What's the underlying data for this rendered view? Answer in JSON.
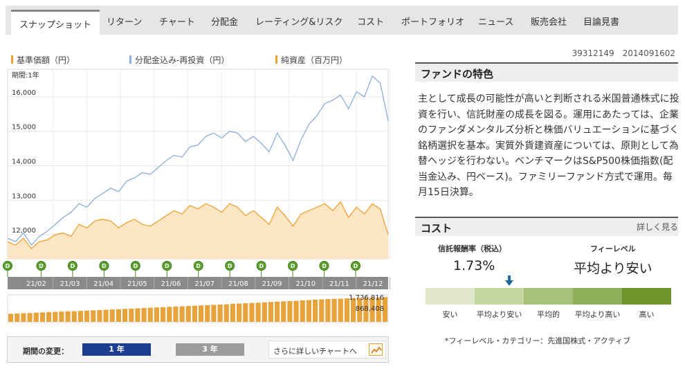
{
  "tabs": [
    {
      "label": "スナップショット",
      "active": true
    },
    {
      "label": "リターン"
    },
    {
      "label": "チャート"
    },
    {
      "label": "分配金"
    },
    {
      "label": "レーティング&リスク"
    },
    {
      "label": "コスト"
    },
    {
      "label": "ポートフォリオ"
    },
    {
      "label": "ニュース"
    },
    {
      "label": "販売会社"
    },
    {
      "label": "目論見書"
    }
  ],
  "legend": {
    "nav": {
      "label": "基準価額（円）",
      "color": "#f0a030"
    },
    "dist": {
      "label": "分配金込み-再投資（円）",
      "color": "#8aaed6"
    },
    "net": {
      "label": "純資産（百万円）",
      "color": "#f0a030"
    }
  },
  "chart": {
    "period_label": "期間:1年",
    "dividend_marker": "D"
  },
  "chart_data": {
    "type": "line",
    "ylim": [
      11300,
      16800
    ],
    "yticks": [
      "16,000",
      "15,000",
      "14,000",
      "13,000",
      "12,000"
    ],
    "ytick_values": [
      16000,
      15000,
      14000,
      13000,
      12000
    ],
    "month_labels": [
      "21/02",
      "21/03",
      "21/04",
      "21/05",
      "21/06",
      "21/07",
      "21/08",
      "21/09",
      "21/10",
      "21/11",
      "21/12"
    ],
    "dividends": 12,
    "series": [
      {
        "name": "分配金込み-再投資（円）",
        "color": "#8aaed6",
        "values": [
          11900,
          11800,
          12050,
          11700,
          11950,
          12100,
          12300,
          12500,
          12650,
          12900,
          12800,
          13050,
          13200,
          13350,
          13250,
          13550,
          13650,
          13800,
          13750,
          13950,
          14150,
          14300,
          14250,
          14550,
          14600,
          14850,
          14950,
          14800,
          15000,
          14950,
          14700,
          14850,
          14650,
          14400,
          14950,
          14600,
          14150,
          14750,
          15200,
          15450,
          15800,
          15900,
          16050,
          15650,
          16150,
          16000,
          16600,
          16400,
          15300
        ]
      },
      {
        "name": "基準価額（円）",
        "color": "#f0a030",
        "values": [
          11800,
          11700,
          11900,
          11600,
          11800,
          11850,
          12000,
          12050,
          11950,
          12300,
          12200,
          12400,
          12450,
          12400,
          12200,
          12350,
          12450,
          12300,
          12250,
          12400,
          12550,
          12700,
          12600,
          12850,
          12750,
          12900,
          12800,
          12650,
          12900,
          12800,
          12550,
          12700,
          12500,
          12300,
          12800,
          12550,
          12250,
          12600,
          12700,
          12800,
          12900,
          12700,
          12950,
          12500,
          12800,
          12600,
          12900,
          12750,
          12000
        ]
      }
    ],
    "net_assets": {
      "name": "純資産（百万円）",
      "max_label": "1,736,816",
      "min_label": "868,408",
      "max": 1736816,
      "min": 868408,
      "values": [
        560000,
        580000,
        600000,
        610000,
        640000,
        650000,
        670000,
        690000,
        710000,
        730000,
        740000,
        760000,
        780000,
        800000,
        820000,
        840000,
        860000,
        880000,
        900000,
        920000,
        940000,
        960000,
        980000,
        1000000,
        1020000,
        1040000,
        1060000,
        1080000,
        1100000,
        1120000,
        1140000,
        1160000,
        1180000,
        1200000,
        1220000,
        1250000,
        1270000,
        1290000,
        1310000,
        1330000,
        1360000,
        1380000,
        1400000,
        1420000,
        1440000,
        1460000,
        1490000,
        1510000,
        1540000,
        1560000,
        1580000,
        1600000,
        1610000,
        1630000,
        1650000,
        1660000,
        1680000,
        1690000,
        1700000,
        1710000
      ]
    }
  },
  "period": {
    "label": "期間の変更：",
    "one_year": "1 年",
    "three_year": "3 年",
    "more_chart": "さらに詳しいチャートへ"
  },
  "fund_codes": "39312149　2014091602",
  "features": {
    "title": "ファンドの特色",
    "body": "主として成長の可能性が高いと判断される米国普通株式に投資を行い、信託財産の成長を図る。運用にあたっては、企業のファンダメンタルズ分析と株価バリュエーションに基づく銘柄選択を基本。実質外貨建資産については、原則として為替ヘッジを行わない。ベンチマークはS&P500株価指数(配当金込み、円ベース)。ファミリーファンド方式で運用。毎月15日決算。"
  },
  "cost": {
    "title": "コスト",
    "detail_link": "詳しく見る",
    "trust_fee_label": "信託報酬率（税込）",
    "trust_fee_value": "1.73%",
    "fee_level_label": "フィーレベル",
    "fee_level_value": "平均より安い",
    "scale": [
      {
        "label": "安い",
        "color": "#dfe6cc"
      },
      {
        "label": "平均より安い",
        "color": "#c4d6a0"
      },
      {
        "label": "平均的",
        "color": "#a6c279"
      },
      {
        "label": "平均より高い",
        "color": "#8eb05a"
      },
      {
        "label": "高い",
        "color": "#6f9429"
      }
    ],
    "marker_index": 1,
    "note": "*フィーレベル・カテゴリー：先進国株式・アクティブ"
  }
}
